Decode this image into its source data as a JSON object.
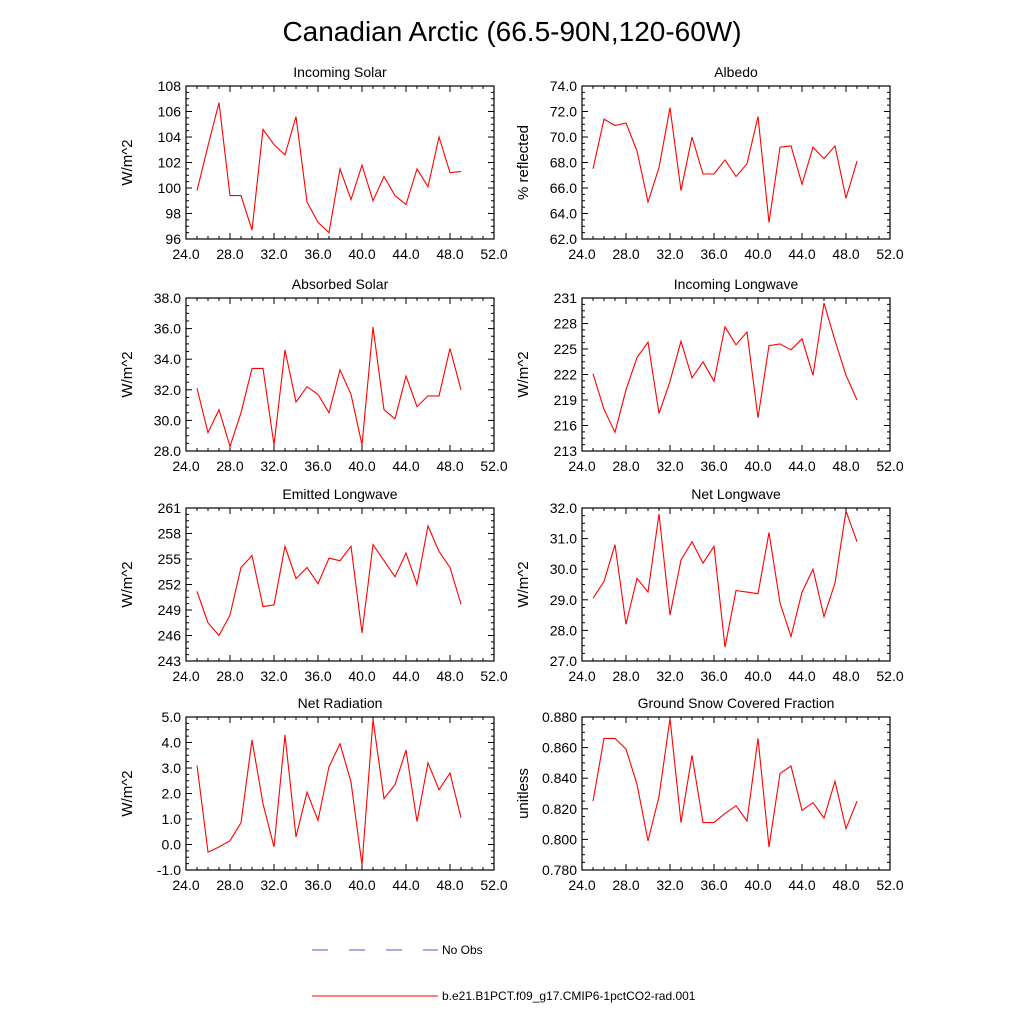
{
  "figure": {
    "title": "Canadian Arctic (66.5-90N,120-60W)"
  },
  "legend": {
    "items": [
      {
        "label": "No Obs",
        "color": "#5555cc",
        "style": "dashed"
      },
      {
        "label": "b.e21.B1PCT.f09_g17.CMIP6-1pctCO2-rad.001",
        "color": "#ff0000",
        "style": "solid"
      }
    ]
  },
  "chart_data": [
    {
      "type": "line",
      "title": "Incoming Solar",
      "ylabel": "W/m^2",
      "xlim": [
        24,
        52
      ],
      "ylim": [
        96,
        108
      ],
      "xticks": [
        24,
        28,
        32,
        36,
        40,
        44,
        48,
        52
      ],
      "xtick_labels": [
        "24.0",
        "28.0",
        "32.0",
        "36.0",
        "40.0",
        "44.0",
        "48.0",
        "52.0"
      ],
      "yticks": [
        96,
        98,
        100,
        102,
        104,
        106,
        108
      ],
      "ytick_labels": [
        "96",
        "98",
        "100",
        "102",
        "104",
        "106",
        "108"
      ],
      "series": [
        {
          "x": [
            25,
            26,
            27,
            28,
            29,
            30,
            31,
            32,
            33,
            34,
            35,
            36,
            37,
            38,
            39,
            40,
            41,
            42,
            43,
            44,
            45,
            46,
            47,
            48,
            49
          ],
          "values": [
            99.8,
            103.3,
            106.7,
            99.4,
            99.4,
            96.7,
            104.6,
            103.4,
            102.6,
            105.6,
            98.9,
            97.3,
            96.5,
            101.5,
            99.1,
            101.8,
            99.0,
            100.9,
            99.4,
            98.7,
            101.5,
            100.1,
            104.0,
            101.2,
            101.3
          ]
        }
      ]
    },
    {
      "type": "line",
      "title": "Albedo",
      "ylabel": "% reflected",
      "xlim": [
        24,
        52
      ],
      "ylim": [
        62,
        74
      ],
      "xticks": [
        24,
        28,
        32,
        36,
        40,
        44,
        48,
        52
      ],
      "xtick_labels": [
        "24.0",
        "28.0",
        "32.0",
        "36.0",
        "40.0",
        "44.0",
        "48.0",
        "52.0"
      ],
      "yticks": [
        62,
        64,
        66,
        68,
        70,
        72,
        74
      ],
      "ytick_labels": [
        "62.0",
        "64.0",
        "66.0",
        "68.0",
        "70.0",
        "72.0",
        "74.0"
      ],
      "series": [
        {
          "x": [
            25,
            26,
            27,
            28,
            29,
            30,
            31,
            32,
            33,
            34,
            35,
            36,
            37,
            38,
            39,
            40,
            41,
            42,
            43,
            44,
            45,
            46,
            47,
            48,
            49
          ],
          "values": [
            67.5,
            71.4,
            70.9,
            71.1,
            68.9,
            64.9,
            67.6,
            72.3,
            65.8,
            70.0,
            67.1,
            67.1,
            68.2,
            66.9,
            67.9,
            71.6,
            63.3,
            69.2,
            69.3,
            66.3,
            69.2,
            68.3,
            69.3,
            65.2,
            68.1
          ]
        }
      ]
    },
    {
      "type": "line",
      "title": "Absorbed Solar",
      "ylabel": "W/m^2",
      "xlim": [
        24,
        52
      ],
      "ylim": [
        28,
        38
      ],
      "xticks": [
        24,
        28,
        32,
        36,
        40,
        44,
        48,
        52
      ],
      "xtick_labels": [
        "24.0",
        "28.0",
        "32.0",
        "36.0",
        "40.0",
        "44.0",
        "48.0",
        "52.0"
      ],
      "yticks": [
        28,
        30,
        32,
        34,
        36,
        38
      ],
      "ytick_labels": [
        "28.0",
        "30.0",
        "32.0",
        "34.0",
        "36.0",
        "38.0"
      ],
      "series": [
        {
          "x": [
            25,
            26,
            27,
            28,
            29,
            30,
            31,
            32,
            33,
            34,
            35,
            36,
            37,
            38,
            39,
            40,
            41,
            42,
            43,
            44,
            45,
            46,
            47,
            48,
            49
          ],
          "values": [
            32.1,
            29.2,
            30.7,
            28.3,
            30.5,
            33.4,
            33.4,
            28.4,
            34.6,
            31.2,
            32.2,
            31.7,
            30.5,
            33.3,
            31.7,
            28.4,
            36.1,
            30.7,
            30.1,
            32.9,
            30.9,
            31.6,
            31.6,
            34.7,
            32.0
          ]
        }
      ]
    },
    {
      "type": "line",
      "title": "Incoming Longwave",
      "ylabel": "W/m^2",
      "xlim": [
        24,
        52
      ],
      "ylim": [
        213,
        231
      ],
      "xticks": [
        24,
        28,
        32,
        36,
        40,
        44,
        48,
        52
      ],
      "xtick_labels": [
        "24.0",
        "28.0",
        "32.0",
        "36.0",
        "40.0",
        "44.0",
        "48.0",
        "52.0"
      ],
      "yticks": [
        213,
        216,
        219,
        222,
        225,
        228,
        231
      ],
      "ytick_labels": [
        "213",
        "216",
        "219",
        "222",
        "225",
        "228",
        "231"
      ],
      "series": [
        {
          "x": [
            25,
            26,
            27,
            28,
            29,
            30,
            31,
            32,
            33,
            34,
            35,
            36,
            37,
            38,
            39,
            40,
            41,
            42,
            43,
            44,
            45,
            46,
            47,
            48,
            49
          ],
          "values": [
            222.1,
            217.9,
            215.2,
            220.2,
            224.0,
            225.8,
            217.4,
            221.2,
            225.9,
            221.6,
            223.5,
            221.2,
            227.6,
            225.5,
            227.0,
            216.9,
            225.4,
            225.6,
            224.9,
            226.2,
            221.9,
            230.4,
            226.0,
            221.9,
            219.0
          ]
        }
      ]
    },
    {
      "type": "line",
      "title": "Emitted Longwave",
      "ylabel": "W/m^2",
      "xlim": [
        24,
        52
      ],
      "ylim": [
        243,
        261
      ],
      "xticks": [
        24,
        28,
        32,
        36,
        40,
        44,
        48,
        52
      ],
      "xtick_labels": [
        "24.0",
        "28.0",
        "32.0",
        "36.0",
        "40.0",
        "44.0",
        "48.0",
        "52.0"
      ],
      "yticks": [
        243,
        246,
        249,
        252,
        255,
        258,
        261
      ],
      "ytick_labels": [
        "243",
        "246",
        "249",
        "252",
        "255",
        "258",
        "261"
      ],
      "series": [
        {
          "x": [
            25,
            26,
            27,
            28,
            29,
            30,
            31,
            32,
            33,
            34,
            35,
            36,
            37,
            38,
            39,
            40,
            41,
            42,
            43,
            44,
            45,
            46,
            47,
            48,
            49
          ],
          "values": [
            251.2,
            247.5,
            246.0,
            248.4,
            254.0,
            255.4,
            249.4,
            249.6,
            256.5,
            252.7,
            254.0,
            252.1,
            255.1,
            254.8,
            256.5,
            246.3,
            256.7,
            254.8,
            252.9,
            255.7,
            252.0,
            258.9,
            255.9,
            254.0,
            249.7
          ]
        }
      ]
    },
    {
      "type": "line",
      "title": "Net Longwave",
      "ylabel": "W/m^2",
      "xlim": [
        24,
        52
      ],
      "ylim": [
        27,
        32
      ],
      "xticks": [
        24,
        28,
        32,
        36,
        40,
        44,
        48,
        52
      ],
      "xtick_labels": [
        "24.0",
        "28.0",
        "32.0",
        "36.0",
        "40.0",
        "44.0",
        "48.0",
        "52.0"
      ],
      "yticks": [
        27,
        28,
        29,
        30,
        31,
        32
      ],
      "ytick_labels": [
        "27.0",
        "28.0",
        "29.0",
        "30.0",
        "31.0",
        "32.0"
      ],
      "series": [
        {
          "x": [
            25,
            26,
            27,
            28,
            29,
            30,
            31,
            32,
            33,
            34,
            35,
            36,
            37,
            38,
            39,
            40,
            41,
            42,
            43,
            44,
            45,
            46,
            47,
            48,
            49
          ],
          "values": [
            29.05,
            29.6,
            30.8,
            28.2,
            29.7,
            29.25,
            31.8,
            28.5,
            30.3,
            30.9,
            30.2,
            30.75,
            27.45,
            29.3,
            29.25,
            29.2,
            31.2,
            28.9,
            27.8,
            29.25,
            30.0,
            28.45,
            29.55,
            31.9,
            30.9
          ]
        }
      ]
    },
    {
      "type": "line",
      "title": "Net Radiation",
      "ylabel": "W/m^2",
      "xlim": [
        24,
        52
      ],
      "ylim": [
        -1,
        5
      ],
      "xticks": [
        24,
        28,
        32,
        36,
        40,
        44,
        48,
        52
      ],
      "xtick_labels": [
        "24.0",
        "28.0",
        "32.0",
        "36.0",
        "40.0",
        "44.0",
        "48.0",
        "52.0"
      ],
      "yticks": [
        -1,
        0,
        1,
        2,
        3,
        4,
        5
      ],
      "ytick_labels": [
        "-1.0",
        "0.0",
        "1.0",
        "2.0",
        "3.0",
        "4.0",
        "5.0"
      ],
      "series": [
        {
          "x": [
            25,
            26,
            27,
            28,
            29,
            30,
            31,
            32,
            33,
            34,
            35,
            36,
            37,
            38,
            39,
            40,
            41,
            42,
            43,
            44,
            45,
            46,
            47,
            48,
            49
          ],
          "values": [
            3.1,
            -0.3,
            -0.1,
            0.15,
            0.85,
            4.1,
            1.6,
            -0.1,
            4.3,
            0.3,
            2.05,
            0.95,
            3.05,
            3.95,
            2.45,
            -0.8,
            4.9,
            1.8,
            2.35,
            3.7,
            0.9,
            3.2,
            2.15,
            2.8,
            1.05
          ]
        }
      ]
    },
    {
      "type": "line",
      "title": "Ground Snow Covered Fraction",
      "ylabel": "unitless",
      "xlim": [
        24,
        52
      ],
      "ylim": [
        0.78,
        0.88
      ],
      "xticks": [
        24,
        28,
        32,
        36,
        40,
        44,
        48,
        52
      ],
      "xtick_labels": [
        "24.0",
        "28.0",
        "32.0",
        "36.0",
        "40.0",
        "44.0",
        "48.0",
        "52.0"
      ],
      "yticks": [
        0.78,
        0.8,
        0.82,
        0.84,
        0.86,
        0.88
      ],
      "ytick_labels": [
        "0.780",
        "0.800",
        "0.820",
        "0.840",
        "0.860",
        "0.880"
      ],
      "series": [
        {
          "x": [
            25,
            26,
            27,
            28,
            29,
            30,
            31,
            32,
            33,
            34,
            35,
            36,
            37,
            38,
            39,
            40,
            41,
            42,
            43,
            44,
            45,
            46,
            47,
            48,
            49
          ],
          "values": [
            0.825,
            0.866,
            0.866,
            0.859,
            0.836,
            0.799,
            0.828,
            0.879,
            0.811,
            0.855,
            0.811,
            0.811,
            0.817,
            0.822,
            0.812,
            0.866,
            0.795,
            0.843,
            0.848,
            0.819,
            0.824,
            0.814,
            0.838,
            0.807,
            0.825
          ]
        }
      ]
    }
  ]
}
